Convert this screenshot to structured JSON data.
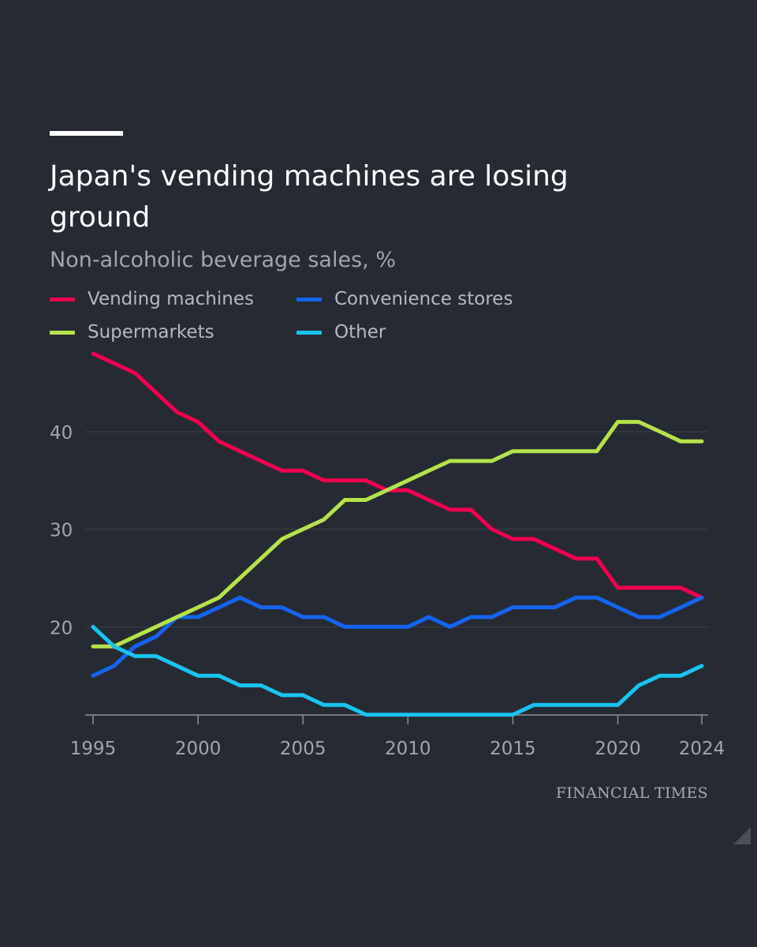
{
  "title": "Japan's vending machines are losing ground",
  "subtitle": "Non-alcoholic beverage sales, %",
  "source": "FINANCIAL TIMES",
  "colors": {
    "background": "#262a33",
    "grid": "#3e424a",
    "axis_text": "#a2a5ab"
  },
  "chart_data": {
    "type": "line",
    "title": "Japan's vending machines are losing ground",
    "subtitle": "Non-alcoholic beverage sales, %",
    "xlabel": "",
    "ylabel": "",
    "xlim": [
      1995,
      2024
    ],
    "ylim": [
      10,
      48
    ],
    "x_ticks": [
      1995,
      2000,
      2005,
      2010,
      2015,
      2020,
      2024
    ],
    "y_ticks": [
      20,
      30,
      40
    ],
    "grid": true,
    "legend_position": "top-left",
    "x": [
      1995,
      1996,
      1997,
      1998,
      1999,
      2000,
      2001,
      2002,
      2003,
      2004,
      2005,
      2006,
      2007,
      2008,
      2009,
      2010,
      2011,
      2012,
      2013,
      2014,
      2015,
      2016,
      2017,
      2018,
      2019,
      2020,
      2021,
      2022,
      2023,
      2024
    ],
    "series": [
      {
        "name": "Vending machines",
        "color": "#f2004f",
        "values": [
          48,
          47,
          46,
          44,
          42,
          41,
          39,
          38,
          37,
          36,
          36,
          35,
          35,
          35,
          34,
          34,
          33,
          32,
          32,
          30,
          29,
          29,
          28,
          27,
          27,
          24,
          24,
          24,
          24,
          23
        ]
      },
      {
        "name": "Convenience stores",
        "color": "#1464f0",
        "values": [
          15,
          16,
          18,
          19,
          21,
          21,
          22,
          23,
          22,
          22,
          21,
          21,
          20,
          20,
          20,
          20,
          21,
          20,
          21,
          21,
          22,
          22,
          22,
          23,
          23,
          22,
          21,
          21,
          22,
          23
        ]
      },
      {
        "name": "Supermarkets",
        "color": "#b5e24b",
        "values": [
          18,
          18,
          19,
          20,
          21,
          22,
          23,
          25,
          27,
          29,
          30,
          31,
          33,
          33,
          34,
          35,
          36,
          37,
          37,
          37,
          38,
          38,
          38,
          38,
          38,
          41,
          41,
          40,
          39,
          39
        ]
      },
      {
        "name": "Other",
        "color": "#19c3f0",
        "values": [
          20,
          18,
          17,
          17,
          16,
          15,
          15,
          14,
          14,
          13,
          13,
          12,
          12,
          11,
          11,
          11,
          11,
          11,
          11,
          11,
          11,
          12,
          12,
          12,
          12,
          12,
          14,
          15,
          15,
          16
        ]
      }
    ]
  }
}
